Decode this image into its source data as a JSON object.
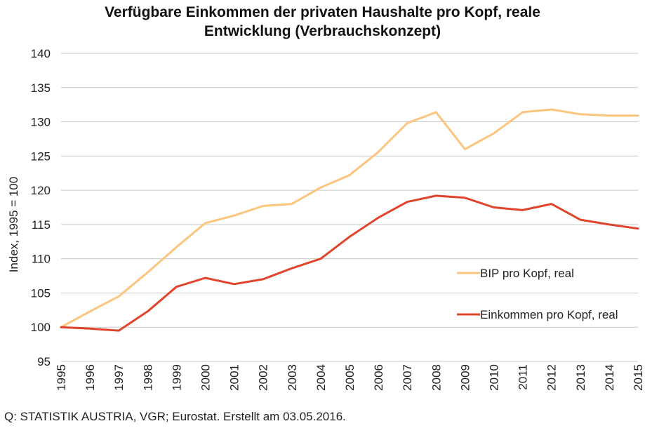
{
  "chart_data": {
    "type": "line",
    "title_lines": [
      "Verfügbare Einkommen der privaten Haushalte pro Kopf, reale",
      "Entwicklung (Verbrauchskonzept)"
    ],
    "ylabel": "Index, 1995 = 100",
    "xlabel": "",
    "ylim": [
      95,
      140
    ],
    "yticks": [
      "95",
      "100",
      "105",
      "110",
      "115",
      "120",
      "125",
      "130",
      "135",
      "140"
    ],
    "grid": true,
    "legend_position": "right",
    "categories": [
      "1995",
      "1996",
      "1997",
      "1998",
      "1999",
      "2000",
      "2001",
      "2002",
      "2003",
      "2004",
      "2005",
      "2006",
      "2007",
      "2008",
      "2009",
      "2010",
      "2011",
      "2012",
      "2013",
      "2014",
      "2015"
    ],
    "series": [
      {
        "name": "BIP pro Kopf, real",
        "color": "#fbc57e",
        "values": [
          100.0,
          102.3,
          104.5,
          108.0,
          111.7,
          115.2,
          116.3,
          117.7,
          118.0,
          120.4,
          122.2,
          125.6,
          129.8,
          131.4,
          126.0,
          128.3,
          131.4,
          131.8,
          131.1,
          130.9,
          130.9
        ]
      },
      {
        "name": "Einkommen pro Kopf, real",
        "color": "#e1442c",
        "values": [
          100.0,
          99.8,
          99.5,
          102.3,
          105.9,
          107.2,
          106.3,
          107.0,
          108.6,
          110.0,
          113.2,
          116.0,
          118.3,
          119.2,
          118.9,
          117.5,
          117.1,
          118.0,
          115.7,
          115.0,
          114.4
        ]
      }
    ]
  },
  "source_note": "Q: STATISTIK AUSTRIA, VGR; Eurostat. Erstellt am 03.05.2016."
}
